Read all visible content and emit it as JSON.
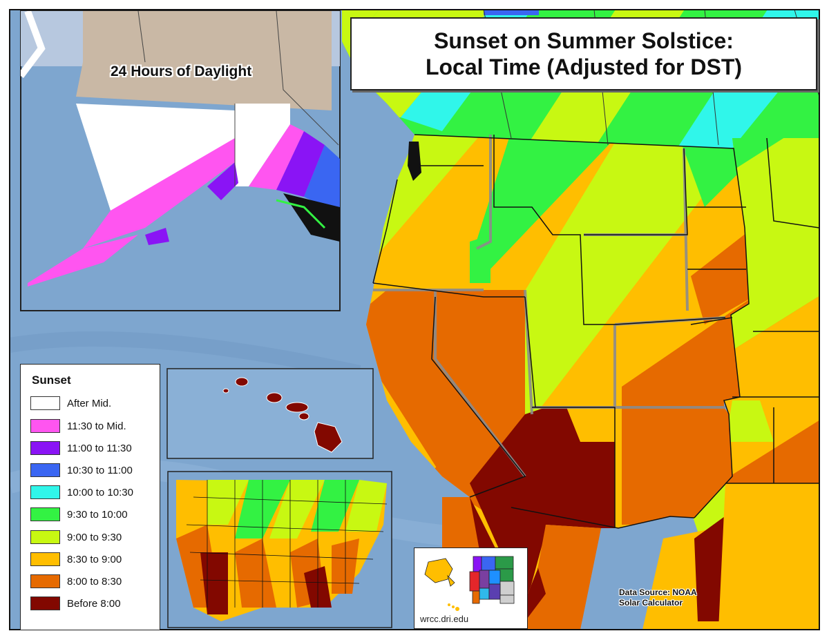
{
  "title": {
    "line1": "Sunset on Summer Solstice:",
    "line2": "Local Time (Adjusted for DST)"
  },
  "inset_alaska": {
    "label": "24 Hours of Daylight"
  },
  "legend": {
    "title": "Sunset",
    "items": [
      {
        "label": "After Mid.",
        "color": "#ffffff"
      },
      {
        "label": "11:30 to Mid.",
        "color": "#ff55f0"
      },
      {
        "label": "11:00 to 11:30",
        "color": "#8a14f5"
      },
      {
        "label": "10:30 to 11:00",
        "color": "#3a66f2"
      },
      {
        "label": "10:00 to 10:30",
        "color": "#30f6ea"
      },
      {
        "label": "9:30 to 10:00",
        "color": "#33f243"
      },
      {
        "label": "9:00 to 9:30",
        "color": "#c8f812"
      },
      {
        "label": "8:30 to 9:00",
        "color": "#ffbe00"
      },
      {
        "label": "8:00 to 8:30",
        "color": "#e66a00"
      },
      {
        "label": "Before 8:00",
        "color": "#820800"
      }
    ]
  },
  "source": {
    "line1": "Data Source: NOAA",
    "line2": "Solar Calculator"
  },
  "logo": {
    "text": "wrcc.dri.edu"
  },
  "colors": {
    "ocean": "#7ea6cf",
    "land_unmapped": "#c9b8a5",
    "border": "#111111",
    "state_outline": "#9a9a9a"
  }
}
